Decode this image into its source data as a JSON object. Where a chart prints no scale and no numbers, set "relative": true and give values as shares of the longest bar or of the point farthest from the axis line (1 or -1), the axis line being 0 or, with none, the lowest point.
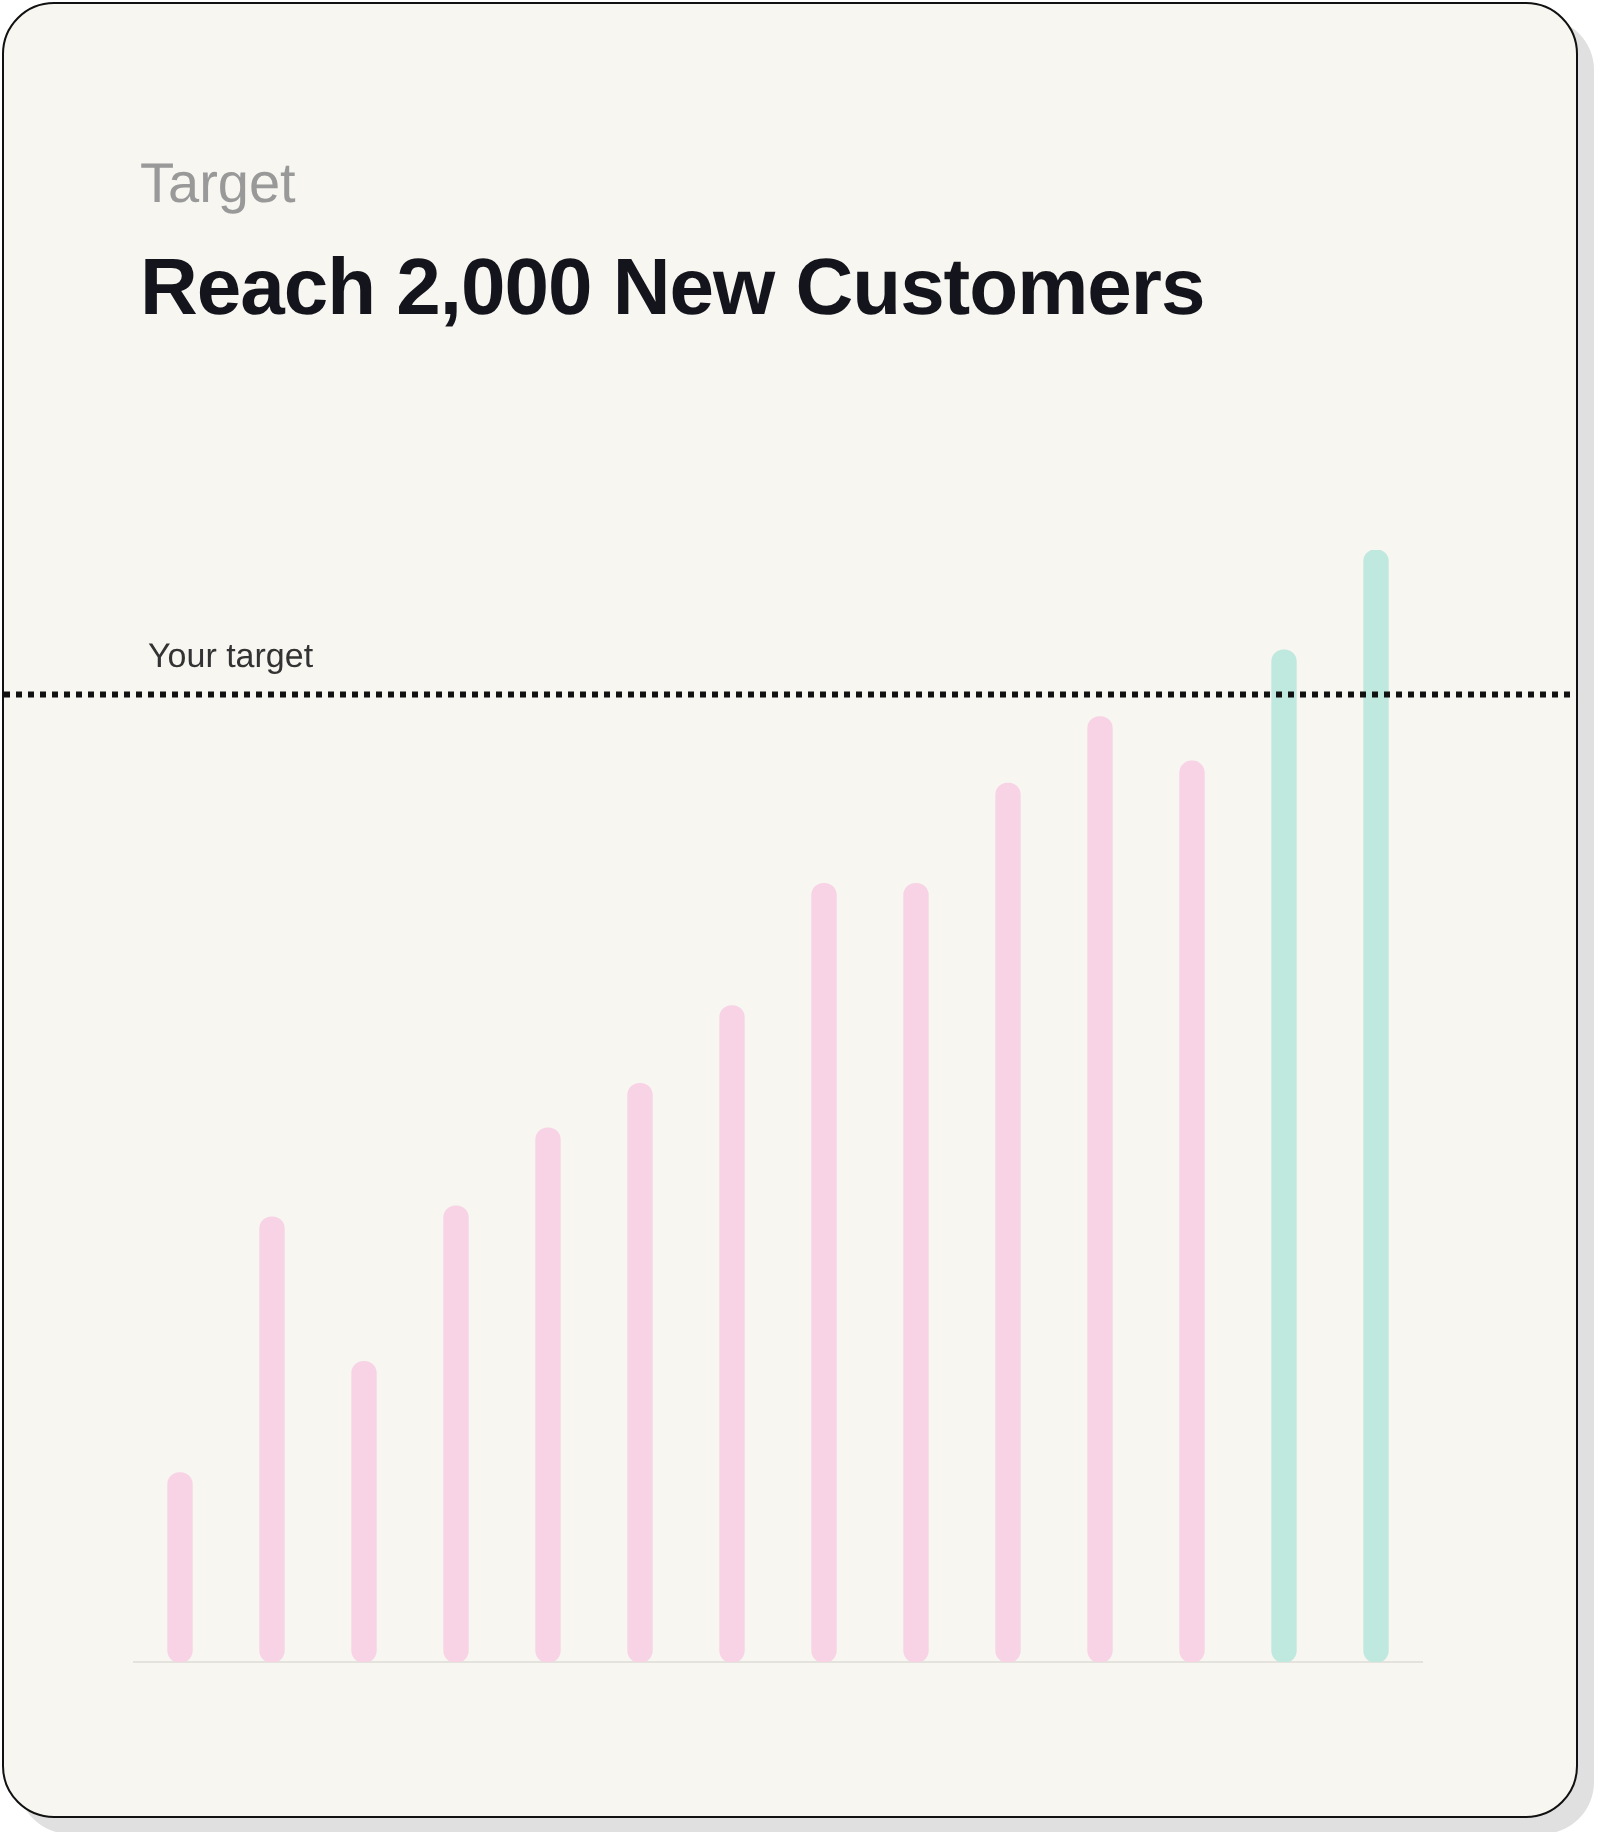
{
  "chart_data": {
    "type": "bar",
    "subtitle": "Target",
    "title": "Reach 2,000 New Customers",
    "categories": [
      null,
      null,
      null,
      null,
      null,
      null,
      null,
      null,
      null,
      null,
      null,
      null,
      null,
      null
    ],
    "values": [
      0.17,
      0.4,
      0.27,
      0.41,
      0.48,
      0.52,
      0.59,
      0.7,
      0.7,
      0.79,
      0.85,
      0.81,
      0.91,
      1
    ],
    "colors": [
      "#f8d3e5",
      "#f8d3e5",
      "#f8d3e5",
      "#f8d3e5",
      "#f8d3e5",
      "#f8d3e5",
      "#f8d3e5",
      "#f8d3e5",
      "#f8d3e5",
      "#f8d3e5",
      "#f8d3e5",
      "#f8d3e5",
      "#bfe8df",
      "#bfe8df"
    ],
    "relative": true,
    "ref_lines": [
      {
        "axis": "y",
        "value": 0.87,
        "label": "Your target",
        "color": "#111111",
        "line_style": "dotted"
      }
    ],
    "legend": false
  }
}
